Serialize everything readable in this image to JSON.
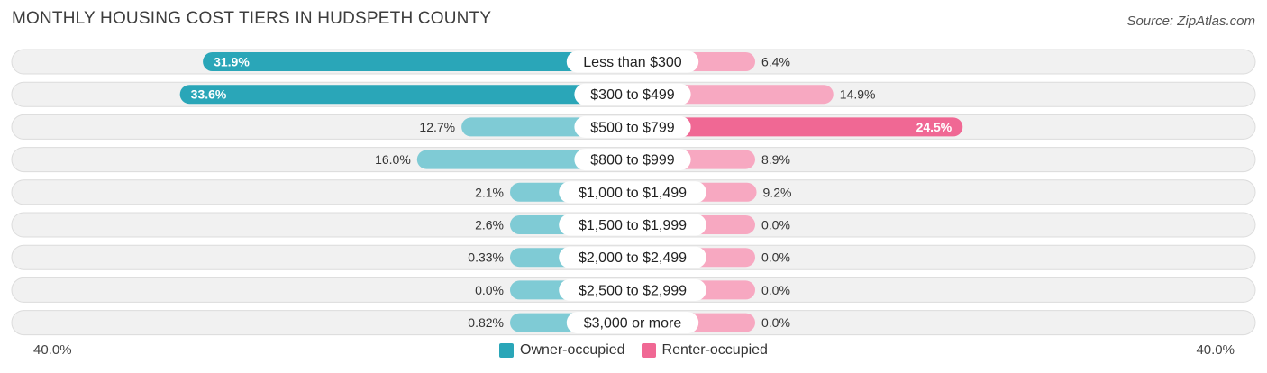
{
  "header": {
    "title": "MONTHLY HOUSING COST TIERS IN HUDSPETH COUNTY",
    "source": "Source: ZipAtlas.com"
  },
  "colors": {
    "owner_strong": "#2aa6b8",
    "owner_light": "#7fcbd5",
    "renter_strong": "#f06894",
    "renter_light": "#f7a8c1",
    "row_bg": "#f1f1f1",
    "row_border": "#dcdcdc"
  },
  "chart_data": {
    "type": "bar",
    "orientation": "horizontal-diverging",
    "categories": [
      "Less than $300",
      "$300 to $499",
      "$500 to $799",
      "$800 to $999",
      "$1,000 to $1,499",
      "$1,500 to $1,999",
      "$2,000 to $2,499",
      "$2,500 to $2,999",
      "$3,000 or more"
    ],
    "series": [
      {
        "name": "Owner-occupied",
        "values": [
          31.9,
          33.6,
          12.7,
          16.0,
          2.1,
          2.6,
          0.33,
          0.0,
          0.82
        ],
        "labels": [
          "31.9%",
          "33.6%",
          "12.7%",
          "16.0%",
          "2.1%",
          "2.6%",
          "0.33%",
          "0.0%",
          "0.82%"
        ]
      },
      {
        "name": "Renter-occupied",
        "values": [
          6.4,
          14.9,
          24.5,
          8.9,
          9.2,
          0.0,
          0.0,
          0.0,
          0.0
        ],
        "labels": [
          "6.4%",
          "14.9%",
          "24.5%",
          "8.9%",
          "9.2%",
          "0.0%",
          "0.0%",
          "0.0%",
          "0.0%"
        ]
      }
    ],
    "xlim": [
      -40,
      40
    ],
    "axis_left_label": "40.0%",
    "axis_right_label": "40.0%",
    "legend": [
      "Owner-occupied",
      "Renter-occupied"
    ],
    "legend_position": "bottom-center"
  }
}
